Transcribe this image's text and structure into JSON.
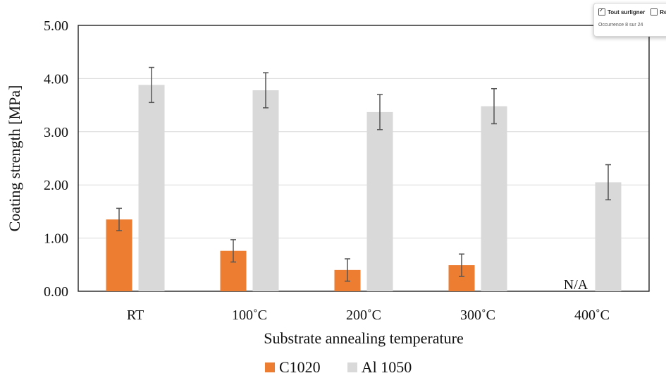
{
  "chart_data": {
    "type": "bar",
    "title": "",
    "xlabel": "Substrate annealing temperature",
    "ylabel": "Coating  strength [MPa]",
    "ylim": [
      0,
      5
    ],
    "yticks": [
      "0.00",
      "1.00",
      "2.00",
      "3.00",
      "4.00",
      "5.00"
    ],
    "grid": true,
    "legend_position": "bottom",
    "categories": [
      "RT",
      "100˚C",
      "200˚C",
      "300˚C",
      "400˚C"
    ],
    "series": [
      {
        "name": "C1020",
        "color": "#ed7d31",
        "values": [
          1.35,
          0.76,
          0.4,
          0.49,
          null
        ],
        "errors": [
          0.21,
          0.21,
          0.21,
          0.21,
          null
        ]
      },
      {
        "name": "Al 1050",
        "color": "#d9d9d9",
        "values": [
          3.88,
          3.78,
          3.37,
          3.48,
          2.05
        ],
        "errors": [
          0.33,
          0.33,
          0.33,
          0.33,
          0.33
        ]
      }
    ],
    "annotations": [
      {
        "category": "400˚C",
        "series": "C1020",
        "text": "N/A"
      }
    ]
  },
  "findbar": {
    "highlight_all_label": "Tout surligner",
    "highlight_all_checked": true,
    "second_option_label": "Re",
    "occurrence_text": "Occurrence 8 sur 24"
  }
}
